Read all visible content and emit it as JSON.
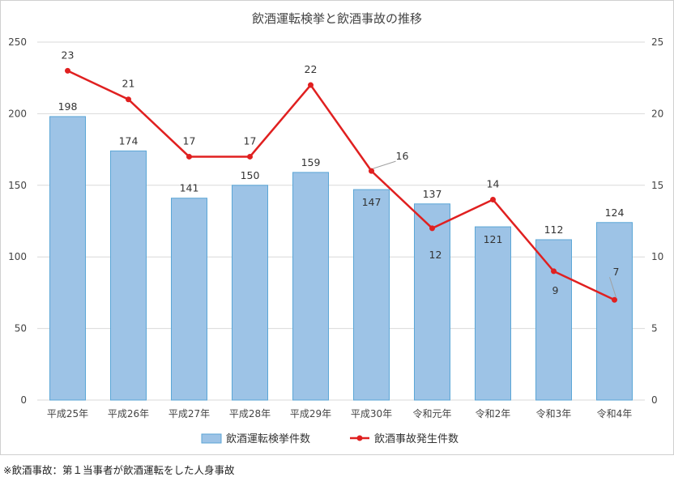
{
  "chart_data": {
    "type": "bar",
    "title": "飲酒運転検挙と飲酒事故の推移",
    "categories": [
      "平成25年",
      "平成26年",
      "平成27年",
      "平成28年",
      "平成29年",
      "平成30年",
      "令和元年",
      "令和2年",
      "令和3年",
      "令和4年"
    ],
    "series": [
      {
        "name": "飲酒運転検挙件数",
        "type": "bar",
        "axis": "left",
        "color": "#9dc3e6",
        "values": [
          198,
          174,
          141,
          150,
          159,
          147,
          137,
          121,
          112,
          124
        ]
      },
      {
        "name": "飲酒事故発生件数",
        "type": "line",
        "axis": "right",
        "color": "#e02020",
        "values": [
          23,
          21,
          17,
          17,
          22,
          16,
          12,
          14,
          9,
          7
        ]
      }
    ],
    "ylim_left": [
      0,
      250
    ],
    "yticks_left": [
      "0",
      "50",
      "100",
      "150",
      "200",
      "250"
    ],
    "ylim_right": [
      0,
      25
    ],
    "yticks_right": [
      "0",
      "5",
      "10",
      "15",
      "20",
      "25"
    ],
    "grid": true,
    "legend_position": "bottom"
  },
  "footnote": "※飲酒事故：第１当事者が飲酒運転をした人身事故"
}
